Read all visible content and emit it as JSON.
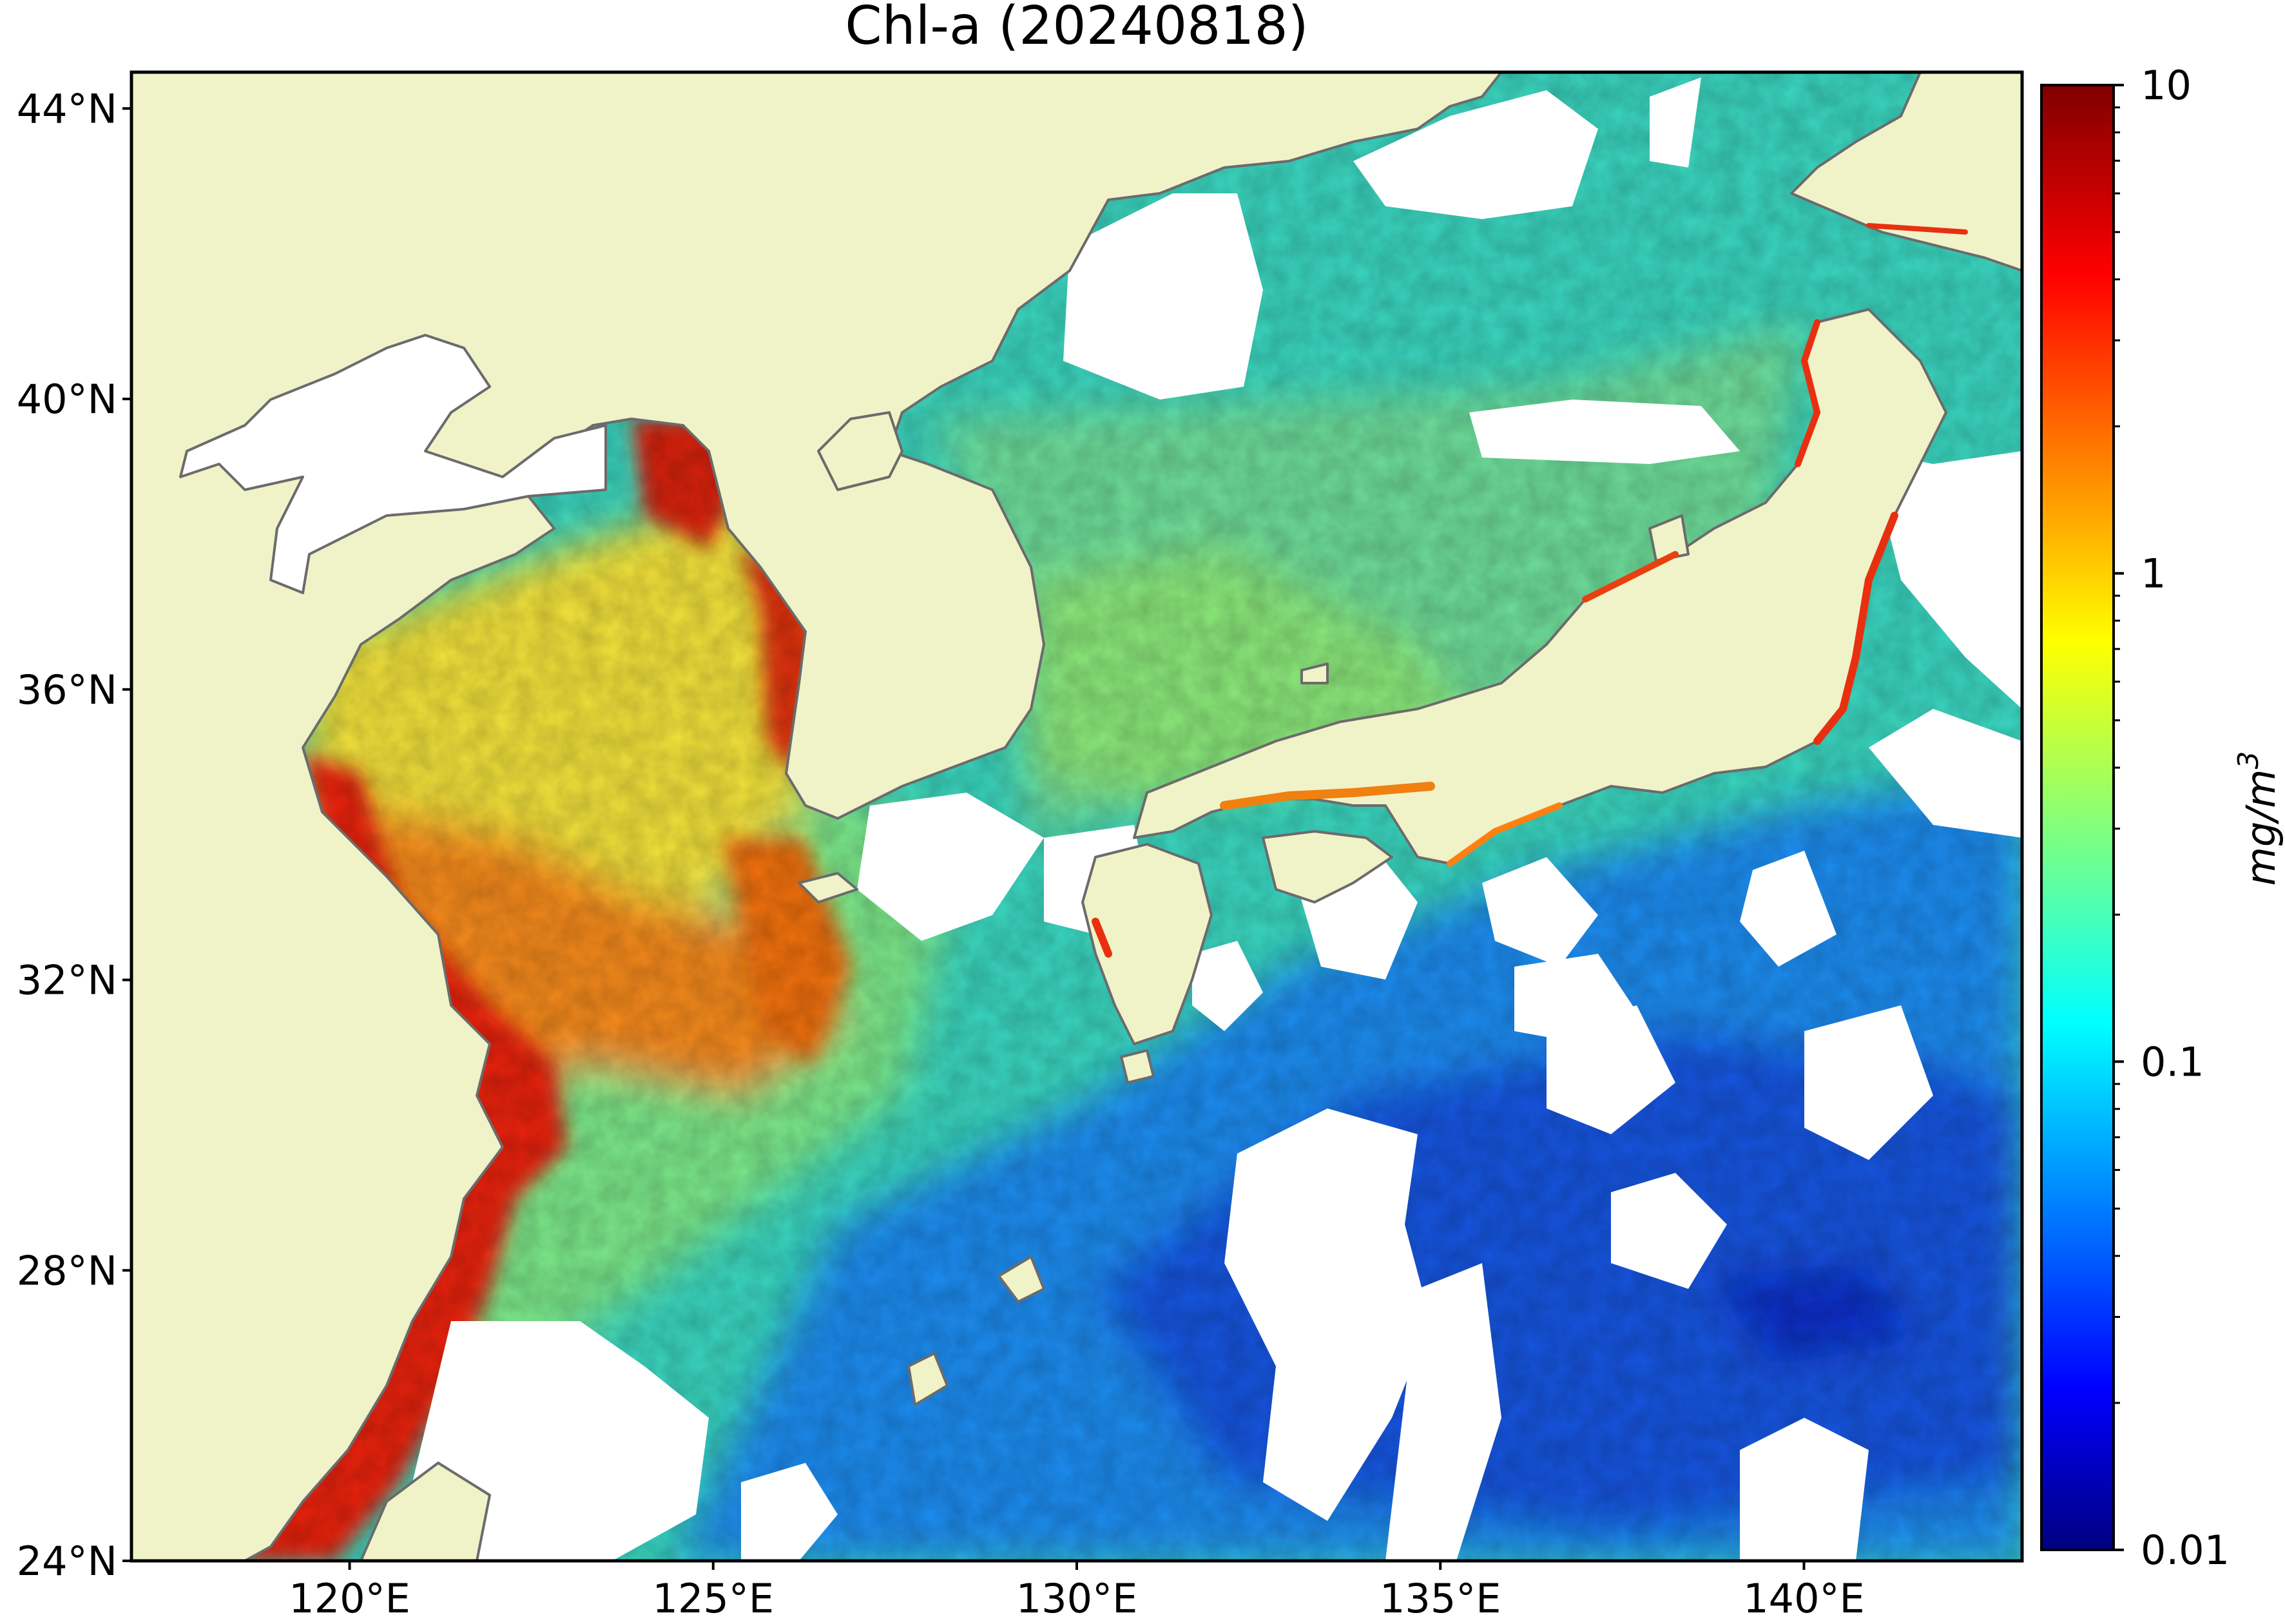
{
  "title": "Chl-a (20240818)",
  "map": {
    "lon_range": [
      117,
      143
    ],
    "lat_range": [
      24,
      44.5
    ],
    "x_ticks": [
      {
        "value": 120,
        "label": "120°E"
      },
      {
        "value": 125,
        "label": "125°E"
      },
      {
        "value": 130,
        "label": "130°E"
      },
      {
        "value": 135,
        "label": "135°E"
      },
      {
        "value": 140,
        "label": "140°E"
      }
    ],
    "y_ticks": [
      {
        "value": 24,
        "label": "24°N"
      },
      {
        "value": 28,
        "label": "28°N"
      },
      {
        "value": 32,
        "label": "32°N"
      },
      {
        "value": 36,
        "label": "36°N"
      },
      {
        "value": 40,
        "label": "40°N"
      },
      {
        "value": 44,
        "label": "44°N"
      }
    ],
    "land_color": "#f0f2c8",
    "coast_color": "#6b6b6b",
    "cloud_color": "#ffffff"
  },
  "colorbar": {
    "label_base": "mg/m",
    "label_sup": "3",
    "scale": "log",
    "range": [
      0.01,
      10
    ],
    "colormap": "jet",
    "ticks": [
      {
        "value": 10,
        "label": "10"
      },
      {
        "value": 1,
        "label": "1"
      },
      {
        "value": 0.1,
        "label": "0.1"
      },
      {
        "value": 0.01,
        "label": "0.01"
      }
    ]
  }
}
